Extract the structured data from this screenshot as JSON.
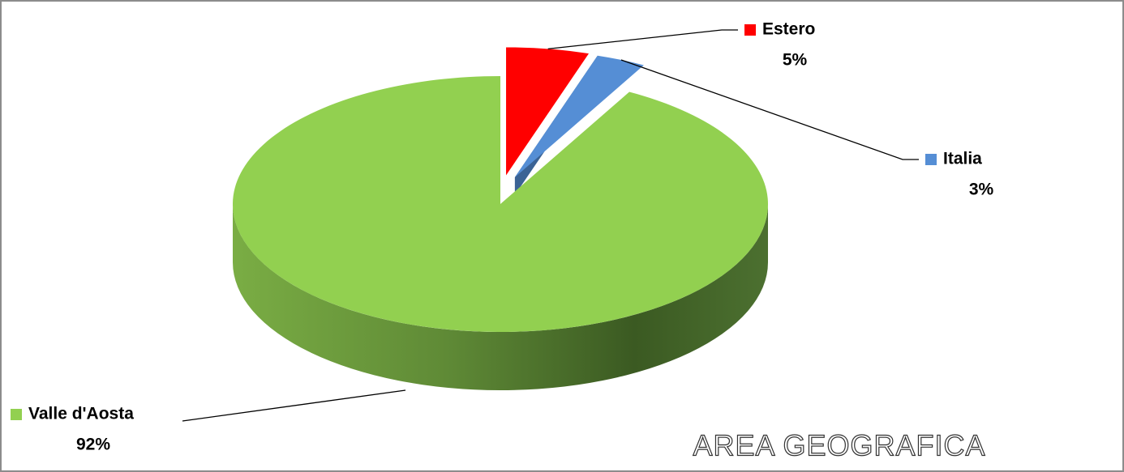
{
  "chart_data": {
    "type": "pie3d",
    "title": "AREA GEOGRAFICA",
    "categories": [
      "Estero",
      "Italia",
      "Valle d'Aosta"
    ],
    "values": [
      5,
      3,
      92
    ],
    "value_labels": [
      "5%",
      "3%",
      "92%"
    ],
    "colors": [
      "#ff0000",
      "#558ed5",
      "#92d050"
    ]
  }
}
